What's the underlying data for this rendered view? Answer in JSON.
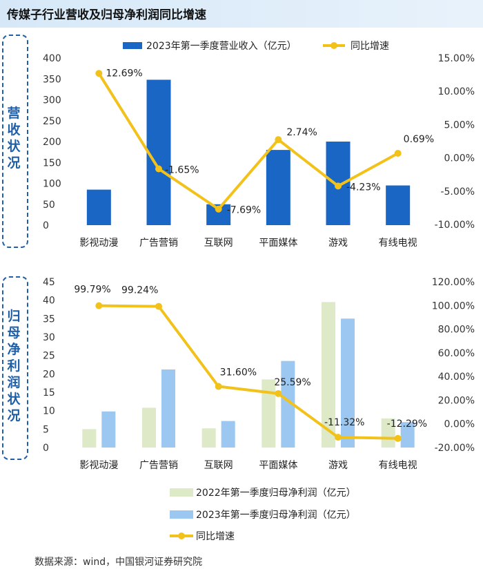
{
  "title": "传媒子行业营收及归母净利润同比增速",
  "source": "数据来源：wind，中国银河证券研究院",
  "colors": {
    "revenue_bar": "#1a66c4",
    "np2022_bar": "#dde9c7",
    "np2023_bar": "#9cc7f0",
    "growth_line": "#f2c21b"
  },
  "chart_data": [
    {
      "type": "bar+line",
      "side_label": "营收状况",
      "categories": [
        "影视动漫",
        "广告营销",
        "互联网",
        "平面媒体",
        "游戏",
        "有线电视"
      ],
      "series": [
        {
          "name": "2023年第一季度营业收入（亿元）",
          "kind": "bar",
          "axis": "left",
          "values": [
            85,
            348,
            50,
            180,
            200,
            95
          ]
        },
        {
          "name": "同比增速",
          "kind": "line",
          "axis": "right",
          "values": [
            12.69,
            -1.65,
            -7.69,
            2.74,
            -4.23,
            0.69
          ],
          "labels": [
            "12.69%",
            "-1.65%",
            "-7.69%",
            "2.74%",
            "-4.23%",
            "0.69%"
          ]
        }
      ],
      "left_ticks": [
        "400",
        "350",
        "300",
        "250",
        "200",
        "150",
        "100",
        "50",
        "0"
      ],
      "right_ticks": [
        "15.00%",
        "10.00%",
        "5.00%",
        "0.00%",
        "-5.00%",
        "-10.00%"
      ],
      "ylim_left": [
        0,
        400
      ],
      "ylim_right": [
        -10,
        15
      ],
      "legend": [
        "2023年第一季度营业收入（亿元）",
        "同比增速"
      ]
    },
    {
      "type": "bar+line",
      "side_label": "归母净利润状况",
      "categories": [
        "影视动漫",
        "广告营销",
        "互联网",
        "平面媒体",
        "游戏",
        "有线电视"
      ],
      "series": [
        {
          "name": "2022年第一季度归母净利润（亿元）",
          "kind": "bar",
          "axis": "left",
          "values": [
            5,
            10.8,
            5.2,
            18.5,
            39.5,
            7.9
          ]
        },
        {
          "name": "2023年第一季度归母净利润（亿元）",
          "kind": "bar",
          "axis": "left",
          "values": [
            9.8,
            21.2,
            7.2,
            23.5,
            35,
            6.9
          ]
        },
        {
          "name": "同比增速",
          "kind": "line",
          "axis": "right",
          "values": [
            99.79,
            99.24,
            31.6,
            25.59,
            -11.32,
            -12.29
          ],
          "labels": [
            "99.79%",
            "99.24%",
            "31.60%",
            "25.59%",
            "-11.32%",
            "-12.29%"
          ]
        }
      ],
      "left_ticks": [
        "45",
        "40",
        "35",
        "30",
        "25",
        "20",
        "15",
        "10",
        "5",
        "0"
      ],
      "right_ticks": [
        "120.00%",
        "100.00%",
        "80.00%",
        "60.00%",
        "40.00%",
        "20.00%",
        "0.00%",
        "-20.00%"
      ],
      "ylim_left": [
        0,
        45
      ],
      "ylim_right": [
        -20,
        120
      ],
      "legend": [
        "2022年第一季度归母净利润（亿元）",
        "2023年第一季度归母净利润（亿元）",
        "同比增速"
      ]
    }
  ]
}
